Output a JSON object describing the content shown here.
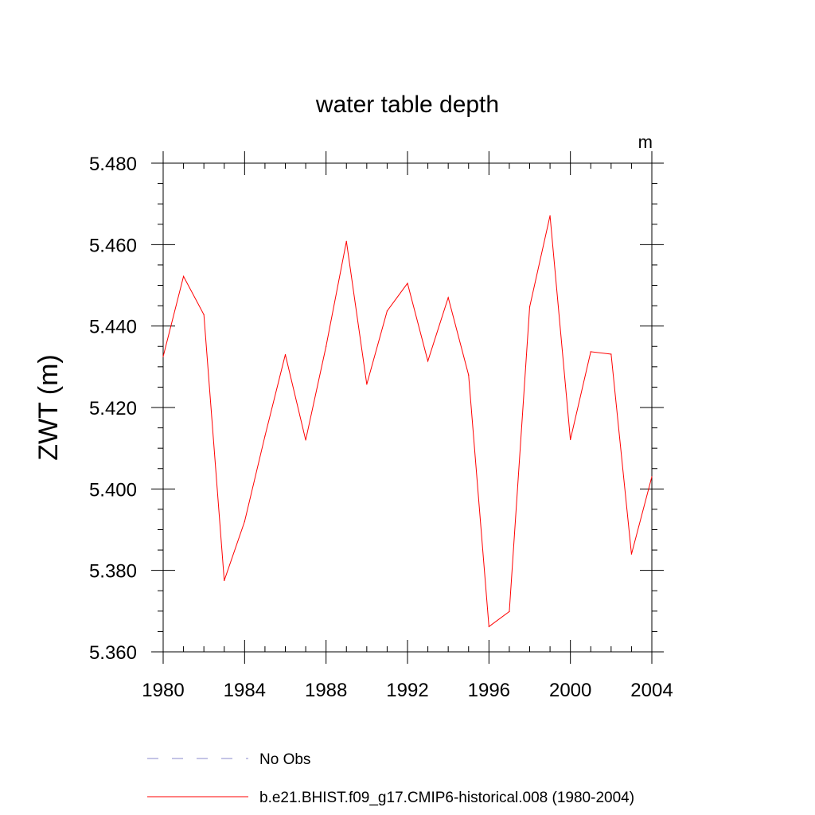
{
  "chart_data": {
    "type": "line",
    "title": "water table depth",
    "units": "m",
    "ylabel": "ZWT  (m)",
    "xlabel": "",
    "xlim": [
      1980,
      2004
    ],
    "ylim": [
      5.36,
      5.48
    ],
    "x_ticks": [
      1980,
      1984,
      1988,
      1992,
      1996,
      2000,
      2004
    ],
    "x_tick_labels": [
      "1980",
      "1984",
      "1988",
      "1992",
      "1996",
      "2000",
      "2004"
    ],
    "x_minor_step": 1,
    "y_ticks": [
      5.36,
      5.38,
      5.4,
      5.42,
      5.44,
      5.46,
      5.48
    ],
    "y_tick_labels": [
      "5.360",
      "5.380",
      "5.400",
      "5.420",
      "5.440",
      "5.460",
      "5.480"
    ],
    "y_minor_step": 0.005,
    "grid": false,
    "legend_placement": "bottom",
    "legend": [
      {
        "label": "No Obs",
        "style": "dashed",
        "color": "#8888cc"
      },
      {
        "label": "b.e21.BHIST.f09_g17.CMIP6-historical.008 (1980-2004)",
        "style": "solid",
        "color": "#ff0000"
      }
    ],
    "series": [
      {
        "name": "b.e21.BHIST.f09_g17.CMIP6-historical.008 (1980-2004)",
        "color": "#ff0000",
        "x": [
          1980,
          1981,
          1982,
          1983,
          1984,
          1985,
          1986,
          1987,
          1988,
          1989,
          1990,
          1991,
          1992,
          1993,
          1994,
          1995,
          1996,
          1997,
          1998,
          1999,
          2000,
          2001,
          2002,
          2003,
          2004
        ],
        "y": [
          5.4325,
          5.4522,
          5.4428,
          5.3775,
          5.392,
          5.413,
          5.433,
          5.412,
          5.435,
          5.4608,
          5.4257,
          5.4437,
          5.4505,
          5.4314,
          5.447,
          5.428,
          5.3662,
          5.3699,
          5.4447,
          5.4671,
          5.4121,
          5.4337,
          5.4331,
          5.384,
          5.403
        ]
      }
    ]
  }
}
